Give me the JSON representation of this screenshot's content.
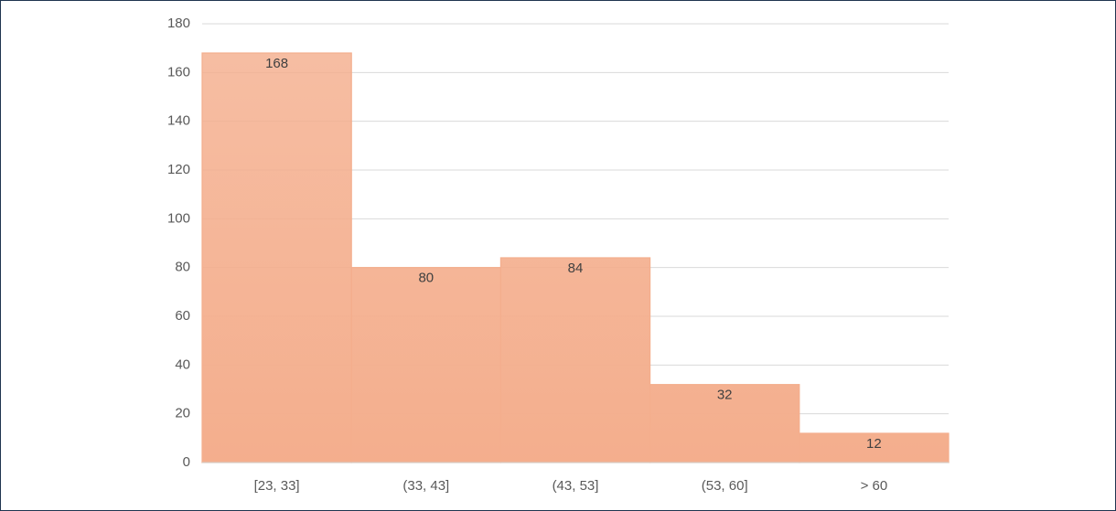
{
  "chart_data": {
    "type": "bar",
    "categories": [
      "[23, 33]",
      "(33, 43]",
      "(43, 53]",
      "(53, 60]",
      "> 60"
    ],
    "values": [
      168,
      80,
      84,
      32,
      12
    ],
    "color": "#f4ae8d",
    "ylim": [
      0,
      180
    ],
    "yticks": [
      0,
      20,
      40,
      60,
      80,
      100,
      120,
      140,
      160,
      180
    ],
    "grid": true
  }
}
